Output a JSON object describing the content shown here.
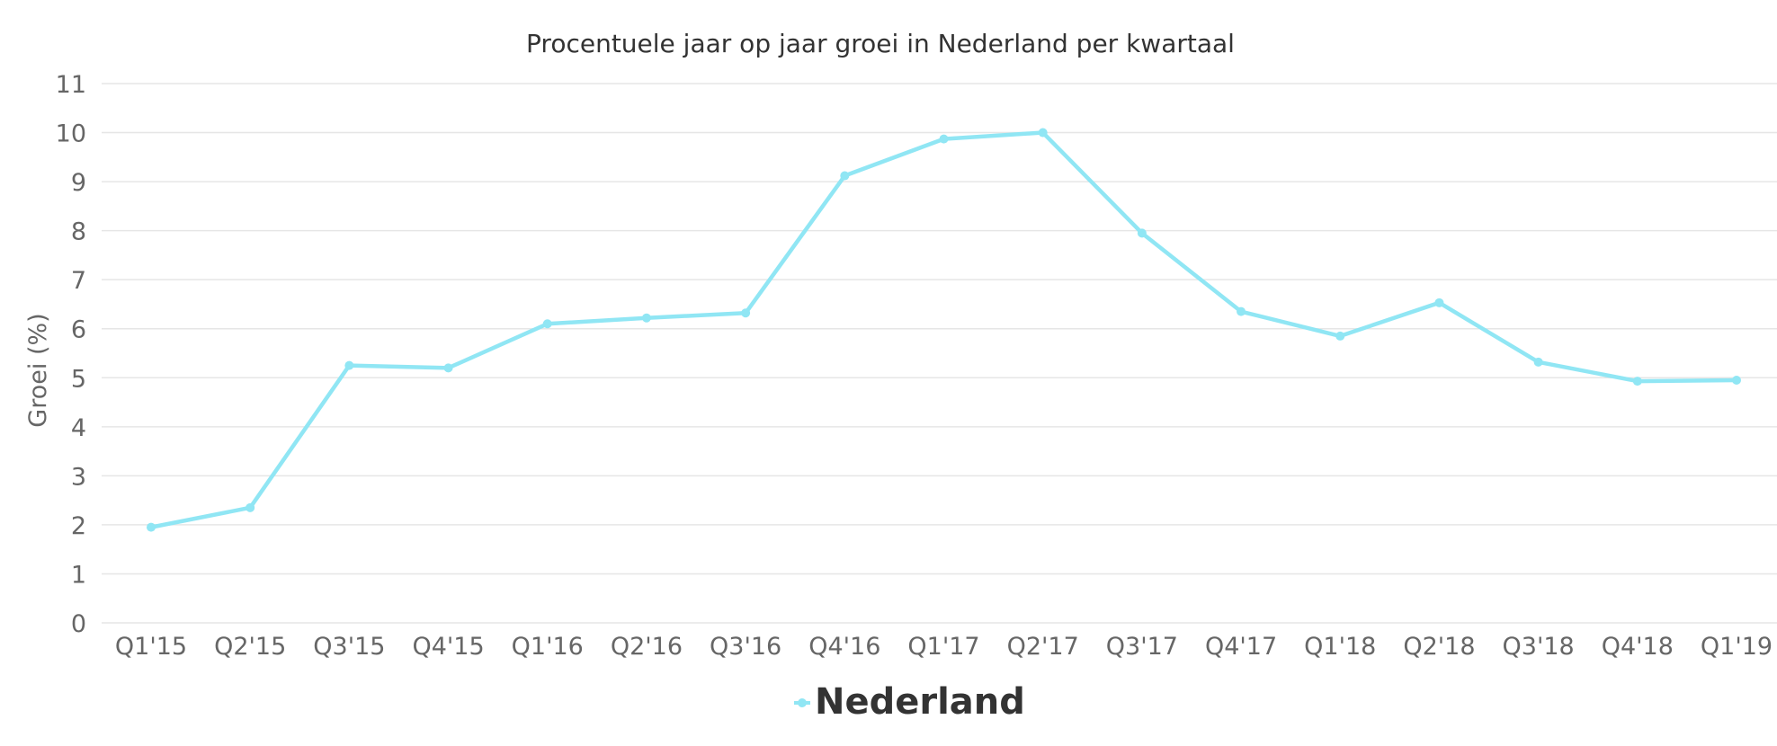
{
  "chart_data": {
    "type": "line",
    "title": "Procentuele jaar op jaar groei in Nederland per kwartaal",
    "xlabel": "",
    "ylabel": "Groei (%)",
    "ylim": [
      0,
      11
    ],
    "yticks": [
      "0",
      "1",
      "2",
      "3",
      "4",
      "5",
      "6",
      "7",
      "8",
      "9",
      "10",
      "11"
    ],
    "categories": [
      "Q1'15",
      "Q2'15",
      "Q3'15",
      "Q4'15",
      "Q1'16",
      "Q2'16",
      "Q3'16",
      "Q4'16",
      "Q1'17",
      "Q2'17",
      "Q3'17",
      "Q4'17",
      "Q1'18",
      "Q2'18",
      "Q3'18",
      "Q4'18",
      "Q1'19"
    ],
    "series": [
      {
        "name": "Nederland",
        "color": "#90e6f4",
        "values": [
          1.95,
          2.35,
          5.25,
          5.2,
          6.1,
          6.22,
          6.32,
          9.12,
          9.87,
          10.0,
          7.95,
          6.35,
          5.85,
          6.53,
          5.32,
          4.93,
          4.95
        ]
      }
    ],
    "grid": true,
    "legend": "bottom-center"
  }
}
